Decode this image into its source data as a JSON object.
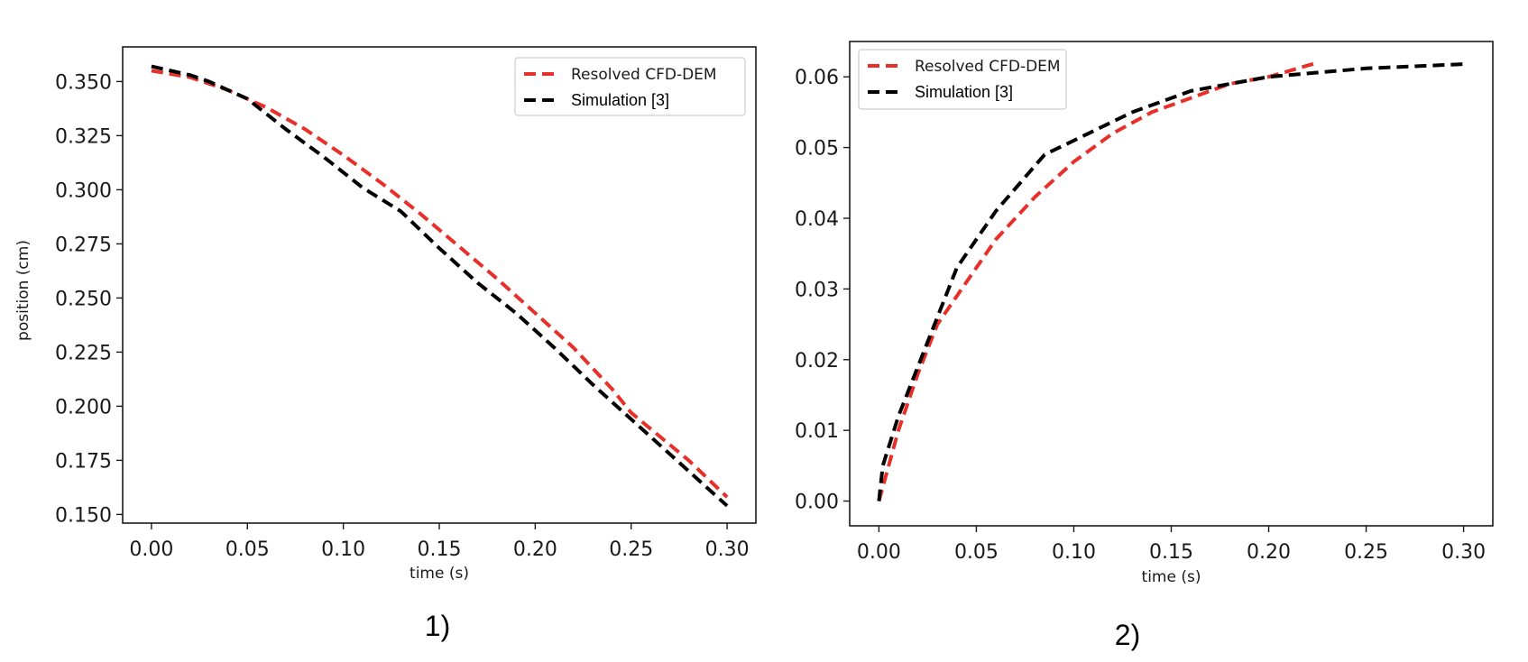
{
  "colors": {
    "red": "#e8302a",
    "black": "#000000"
  },
  "chart_data": [
    {
      "type": "line",
      "panel_label": "1)",
      "xlabel": "time (s)",
      "ylabel": "position (cm)",
      "xlim": [
        -0.015,
        0.315
      ],
      "ylim": [
        0.146,
        0.366
      ],
      "xticks": [
        0.0,
        0.05,
        0.1,
        0.15,
        0.2,
        0.25,
        0.3
      ],
      "xtick_labels": [
        "0.00",
        "0.05",
        "0.10",
        "0.15",
        "0.20",
        "0.25",
        "0.30"
      ],
      "yticks": [
        0.15,
        0.175,
        0.2,
        0.225,
        0.25,
        0.275,
        0.3,
        0.325,
        0.35
      ],
      "ytick_labels": [
        "0.150",
        "0.175",
        "0.200",
        "0.225",
        "0.250",
        "0.275",
        "0.300",
        "0.325",
        "0.350"
      ],
      "legend_position": "upper-right",
      "grid": false,
      "series": [
        {
          "name": "Resolved CFD-DEM",
          "color": "#e8302a",
          "x": [
            0.0,
            0.02,
            0.04,
            0.06,
            0.08,
            0.1,
            0.12,
            0.14,
            0.16,
            0.18,
            0.2,
            0.22,
            0.24,
            0.25,
            0.28,
            0.3
          ],
          "y": [
            0.355,
            0.352,
            0.346,
            0.338,
            0.328,
            0.316,
            0.303,
            0.289,
            0.274,
            0.259,
            0.243,
            0.227,
            0.208,
            0.197,
            0.175,
            0.158
          ]
        },
        {
          "name": "Simulation [3]",
          "color": "#000000",
          "x": [
            0.0,
            0.02,
            0.03,
            0.05,
            0.07,
            0.09,
            0.11,
            0.13,
            0.15,
            0.17,
            0.19,
            0.21,
            0.23,
            0.25,
            0.27,
            0.29,
            0.3
          ],
          "y": [
            0.357,
            0.353,
            0.35,
            0.342,
            0.328,
            0.315,
            0.301,
            0.29,
            0.273,
            0.257,
            0.243,
            0.227,
            0.21,
            0.194,
            0.178,
            0.162,
            0.154
          ]
        }
      ]
    },
    {
      "type": "line",
      "panel_label": "2)",
      "xlabel": "time (s)",
      "ylabel": "",
      "xlim": [
        -0.015,
        0.315
      ],
      "ylim": [
        -0.0035,
        0.065
      ],
      "xticks": [
        0.0,
        0.05,
        0.1,
        0.15,
        0.2,
        0.25,
        0.3
      ],
      "xtick_labels": [
        "0.00",
        "0.05",
        "0.10",
        "0.15",
        "0.20",
        "0.25",
        "0.30"
      ],
      "yticks": [
        0.0,
        0.01,
        0.02,
        0.03,
        0.04,
        0.05,
        0.06
      ],
      "ytick_labels": [
        "0.00",
        "0.01",
        "0.02",
        "0.03",
        "0.04",
        "0.05",
        "0.06"
      ],
      "legend_position": "upper-left",
      "grid": false,
      "series": [
        {
          "name": "Resolved CFD-DEM",
          "color": "#e8302a",
          "x": [
            0.0,
            0.01,
            0.02,
            0.03,
            0.04,
            0.06,
            0.08,
            0.1,
            0.12,
            0.14,
            0.16,
            0.18,
            0.2,
            0.225
          ],
          "y": [
            0.0,
            0.01,
            0.018,
            0.025,
            0.029,
            0.037,
            0.043,
            0.048,
            0.052,
            0.055,
            0.057,
            0.059,
            0.06,
            0.062
          ]
        },
        {
          "name": "Simulation [3]",
          "color": "#000000",
          "x": [
            0.0,
            0.002,
            0.01,
            0.02,
            0.04,
            0.06,
            0.085,
            0.1,
            0.13,
            0.16,
            0.2,
            0.25,
            0.3
          ],
          "y": [
            0.0,
            0.005,
            0.012,
            0.019,
            0.033,
            0.041,
            0.049,
            0.051,
            0.055,
            0.058,
            0.06,
            0.0612,
            0.0618
          ]
        }
      ]
    }
  ]
}
